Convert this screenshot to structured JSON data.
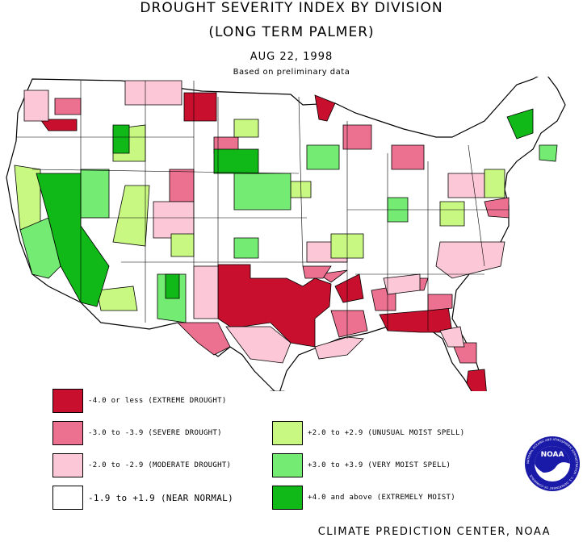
{
  "header": {
    "title_line1": "DROUGHT SEVERITY INDEX BY DIVISION",
    "title_line2": "(LONG TERM PALMER)",
    "date": "AUG 22, 1998",
    "note": "Based on preliminary data"
  },
  "colors": {
    "extreme_drought": "#c8102e",
    "severe_drought": "#ec7090",
    "moderate_drought": "#fcc8d8",
    "near_normal": "#ffffff",
    "unusual_moist": "#c8f882",
    "very_moist": "#74ec74",
    "extremely_moist": "#10b818"
  },
  "legend": [
    {
      "key": "extreme_drought",
      "label": "-4.0 or less (EXTREME DROUGHT)",
      "color": "#c8102e"
    },
    {
      "key": "severe_drought",
      "label": "-3.0 to -3.9 (SEVERE DROUGHT)",
      "color": "#ec7090"
    },
    {
      "key": "moderate_drought",
      "label": "-2.0 to -2.9 (MODERATE DROUGHT)",
      "color": "#fcc8d8"
    },
    {
      "key": "near_normal",
      "label": "-1.9 to +1.9 (NEAR NORMAL)",
      "color": "#ffffff"
    },
    {
      "key": "unusual_moist",
      "label": "+2.0 to +2.9 (UNUSUAL MOIST SPELL)",
      "color": "#c8f882"
    },
    {
      "key": "very_moist",
      "label": "+3.0 to +3.9 (VERY MOIST SPELL)",
      "color": "#74ec74"
    },
    {
      "key": "extremely_moist",
      "label": "+4.0 and above (EXTREMELY MOIST)",
      "color": "#10b818"
    }
  ],
  "logo": {
    "text": "NOAA",
    "ring_text": "NATIONAL OCEANIC AND ATMOSPHERIC ADMINISTRATION · U.S. DEPARTMENT OF COMMERCE"
  },
  "footer": "CLIMATE PREDICTION CENTER, NOAA"
}
